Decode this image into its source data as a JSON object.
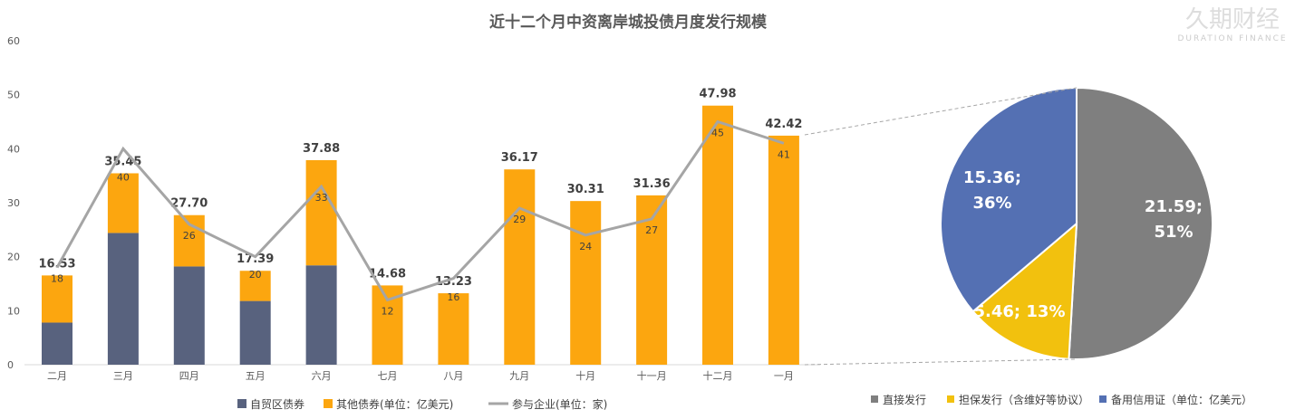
{
  "chart_data": [
    {
      "type": "bar",
      "stacked": true,
      "title": "近十二个月中资离岸城投债月度发行规模",
      "categories": [
        "二月",
        "三月",
        "四月",
        "五月",
        "六月",
        "七月",
        "八月",
        "九月",
        "十月",
        "十一月",
        "十二月",
        "一月"
      ],
      "ylim": [
        0,
        60
      ],
      "yticks": [
        0,
        10,
        20,
        30,
        40,
        50,
        60
      ],
      "grid": false,
      "series": [
        {
          "name": "自贸区债券",
          "color": "#58627e",
          "values": [
            7.8,
            24.4,
            18.2,
            11.8,
            18.4,
            0,
            0,
            0,
            0,
            0,
            0,
            0
          ]
        },
        {
          "name": "其他债券(单位：亿美元)",
          "color": "#fca60f",
          "values": [
            8.73,
            11.05,
            9.5,
            5.59,
            19.48,
            14.68,
            13.23,
            36.17,
            30.31,
            31.36,
            47.98,
            42.42
          ]
        },
        {
          "name": "参与企业(单位：家)",
          "color": "#a5a5a5",
          "type": "line",
          "values": [
            18,
            40,
            26,
            20,
            33,
            12,
            16,
            29,
            24,
            27,
            45,
            41
          ]
        }
      ],
      "total_labels": [
        "16.53",
        "35.45",
        "27.70",
        "17.39",
        "37.88",
        "14.68",
        "13.23",
        "36.17",
        "30.31",
        "31.36",
        "47.98",
        "42.42"
      ],
      "legend_position": "bottom"
    },
    {
      "type": "pie",
      "slices": [
        {
          "name": "直接发行",
          "value": 21.59,
          "percent": 51,
          "label": "21.59;\n51%",
          "color": "#7f7f7f"
        },
        {
          "name": "担保发行（含维好等协议）",
          "value": 5.46,
          "percent": 13,
          "label": "5.46; 13%",
          "color": "#f2c10e"
        },
        {
          "name": "备用信用证（单位：亿美元）",
          "value": 15.36,
          "percent": 36,
          "label": "15.36;\n36%",
          "color": "#5470b3"
        }
      ],
      "legend_position": "bottom"
    }
  ],
  "watermark": {
    "cn": "久期财经",
    "en": "DURATION FINANCE"
  }
}
